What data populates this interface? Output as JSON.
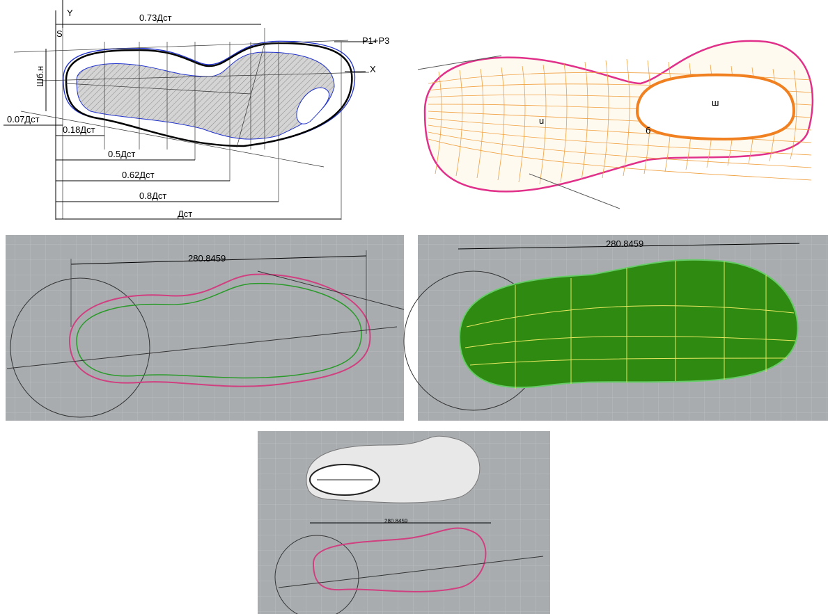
{
  "drawing": {
    "axis_y": "Y",
    "axis_x": "X",
    "s": "S",
    "top_dim": "0.73Дст",
    "toe_dim": "P1+P3",
    "width": "Шб.н",
    "dims": [
      "0.07Дст",
      "0.18Дст",
      "0.5Дст",
      "0.62Дст",
      "0.8Дст",
      "Дст"
    ]
  },
  "mesh": {
    "labels": [
      "u",
      "ш",
      "б"
    ]
  },
  "views": [
    "280.8459",
    "280.8459",
    "280.8459"
  ]
}
